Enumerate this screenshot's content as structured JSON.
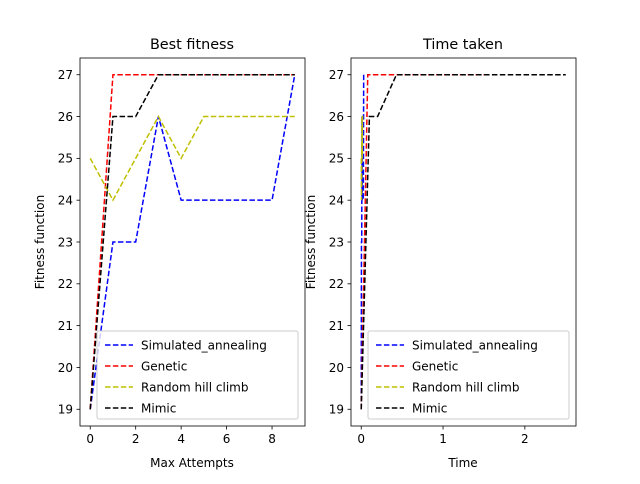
{
  "chart_data": [
    {
      "type": "line",
      "title": "Best fitness",
      "xlabel": "Max Attempts",
      "ylabel": "Fitness function",
      "xlim": [
        -0.45,
        9.45
      ],
      "ylim": [
        18.6,
        27.4
      ],
      "xticks": [
        0,
        2,
        4,
        6,
        8
      ],
      "yticks": [
        19,
        20,
        21,
        22,
        23,
        24,
        25,
        26,
        27
      ],
      "legend_position": "lower-right",
      "series": [
        {
          "name": "Simulated_annealing",
          "color": "#0000ff",
          "x": [
            0,
            1,
            2,
            3,
            4,
            5,
            6,
            7,
            8,
            9
          ],
          "y": [
            19,
            23,
            23,
            26,
            24,
            24,
            24,
            24,
            24,
            27
          ]
        },
        {
          "name": "Genetic",
          "color": "#ff0000",
          "x": [
            0,
            1,
            2,
            3,
            4,
            5,
            6,
            7,
            8,
            9
          ],
          "y": [
            19,
            27,
            27,
            27,
            27,
            27,
            27,
            27,
            27,
            27
          ]
        },
        {
          "name": "Random hill climb",
          "color": "#bfbf00",
          "x": [
            0,
            1,
            2,
            3,
            4,
            5,
            6,
            7,
            8,
            9
          ],
          "y": [
            25,
            24,
            25,
            26,
            25,
            26,
            26,
            26,
            26,
            26
          ]
        },
        {
          "name": "Mimic",
          "color": "#000000",
          "x": [
            0,
            1,
            2,
            3,
            4,
            5,
            6,
            7,
            8,
            9
          ],
          "y": [
            19,
            26,
            26,
            27,
            27,
            27,
            27,
            27,
            27,
            27
          ]
        }
      ]
    },
    {
      "type": "line",
      "title": "Time taken",
      "xlabel": "Time",
      "ylabel": "Fitness function",
      "xlim": [
        -0.125,
        2.625
      ],
      "ylim": [
        18.6,
        27.4
      ],
      "xticks": [
        0,
        1,
        2
      ],
      "yticks": [
        19,
        20,
        21,
        22,
        23,
        24,
        25,
        26,
        27
      ],
      "legend_position": "lower-right",
      "series": [
        {
          "name": "Simulated_annealing",
          "color": "#0000ff",
          "x": [
            0.0,
            0.003,
            0.006,
            0.01,
            0.013,
            0.016,
            0.02,
            0.023,
            0.026,
            0.03
          ],
          "y": [
            19,
            23,
            23,
            26,
            24,
            24,
            24,
            24,
            24,
            27
          ]
        },
        {
          "name": "Genetic",
          "color": "#ff0000",
          "x": [
            0.0,
            0.08,
            0.25,
            0.45,
            0.65,
            0.85,
            1.0,
            1.15,
            1.3,
            1.5
          ],
          "y": [
            19,
            27,
            27,
            27,
            27,
            27,
            27,
            27,
            27,
            27
          ]
        },
        {
          "name": "Random hill climb",
          "color": "#bfbf00",
          "x": [
            0.0,
            0.003,
            0.006,
            0.009,
            0.012,
            0.015,
            0.018,
            0.021,
            0.024,
            0.027
          ],
          "y": [
            25,
            24,
            25,
            26,
            25,
            26,
            26,
            26,
            26,
            26
          ]
        },
        {
          "name": "Mimic",
          "color": "#000000",
          "x": [
            0.0,
            0.1,
            0.2,
            0.43,
            0.7,
            1.0,
            1.3,
            1.7,
            2.1,
            2.5
          ],
          "y": [
            19,
            26,
            26,
            27,
            27,
            27,
            27,
            27,
            27,
            27
          ]
        }
      ]
    }
  ]
}
